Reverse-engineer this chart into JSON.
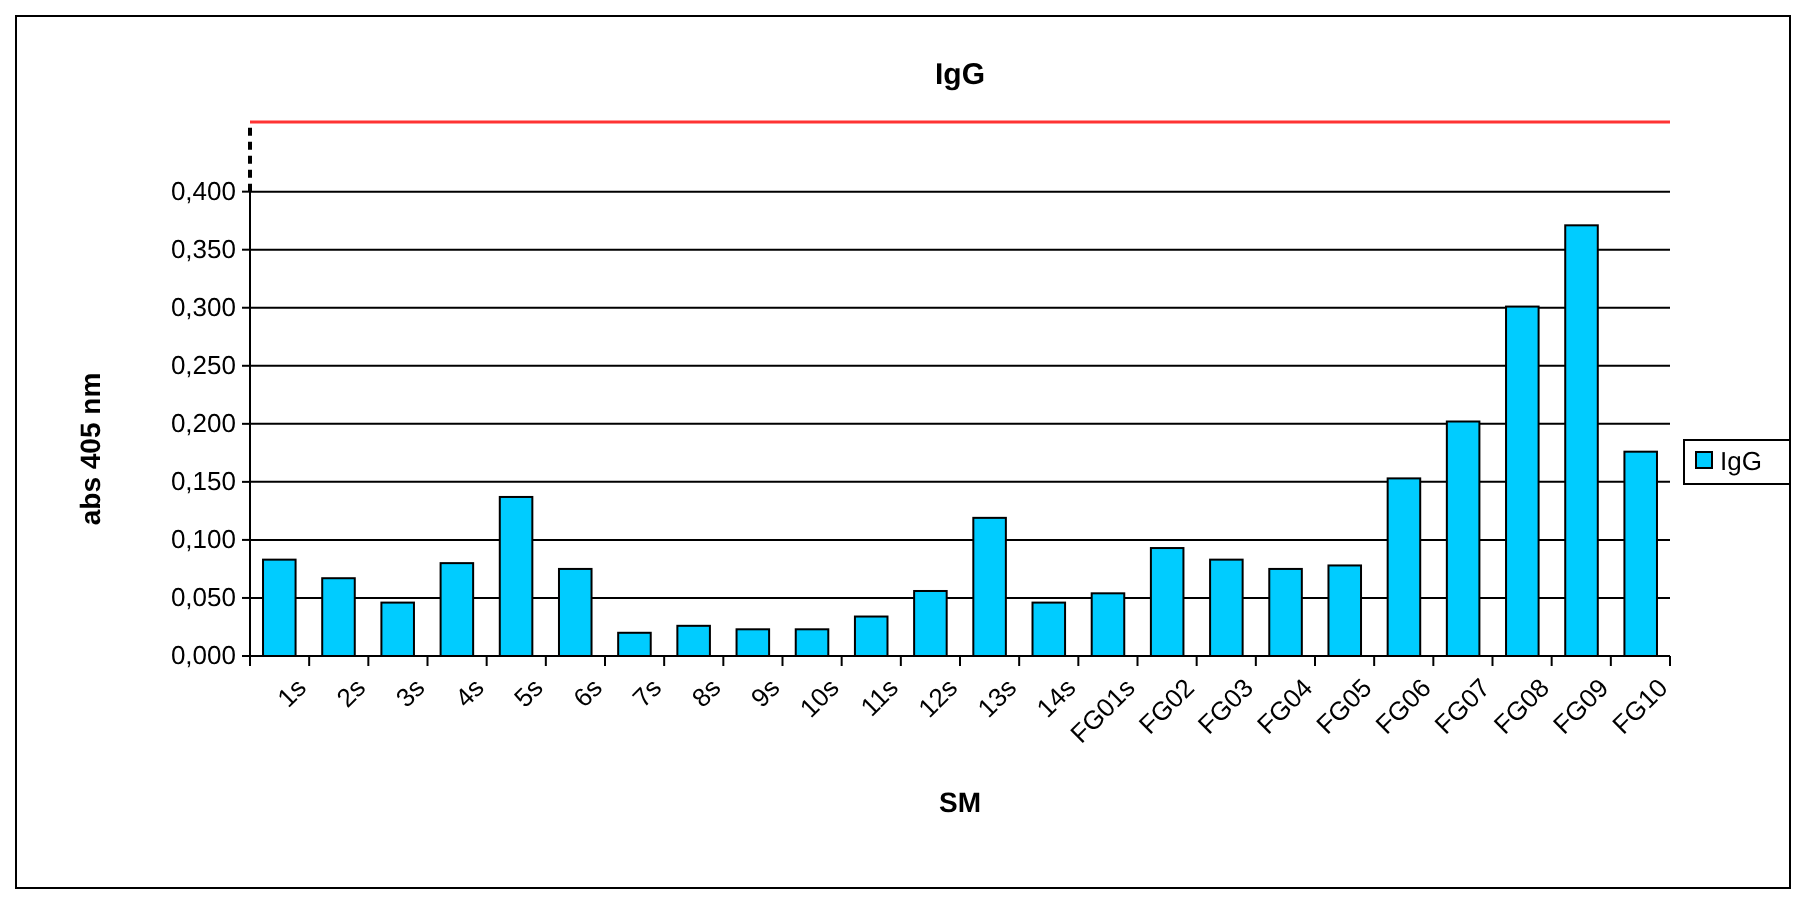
{
  "chart_data": {
    "type": "bar",
    "title": "IgG",
    "xlabel": "SM",
    "ylabel": "abs 405 nm",
    "categories": [
      "1s",
      "2s",
      "3s",
      "4s",
      "5s",
      "6s",
      "7s",
      "8s",
      "9s",
      "10s",
      "11s",
      "12s",
      "13s",
      "14s",
      "FG01s",
      "FG02",
      "FG03",
      "FG04",
      "FG05",
      "FG06",
      "FG07",
      "FG08",
      "FG09",
      "FG10"
    ],
    "series": [
      {
        "name": "IgG",
        "color": "#00ccff",
        "values": [
          0.083,
          0.067,
          0.046,
          0.08,
          0.137,
          0.075,
          0.02,
          0.026,
          0.023,
          0.023,
          0.034,
          0.056,
          0.119,
          0.046,
          0.054,
          0.093,
          0.083,
          0.075,
          0.078,
          0.153,
          0.202,
          0.301,
          0.371,
          0.176
        ]
      }
    ],
    "ylim": [
      0,
      0.46
    ],
    "yticks": [
      {
        "value": 0,
        "label": "0,000"
      },
      {
        "value": 0.05,
        "label": "0,050"
      },
      {
        "value": 0.1,
        "label": "0,100"
      },
      {
        "value": 0.15,
        "label": "0,150"
      },
      {
        "value": 0.2,
        "label": "0,200"
      },
      {
        "value": 0.25,
        "label": "0,250"
      },
      {
        "value": 0.3,
        "label": "0,300"
      },
      {
        "value": 0.35,
        "label": "0,350"
      },
      {
        "value": 0.4,
        "label": "0,400"
      }
    ],
    "ref_lines": [
      {
        "axis": "y",
        "value": 0.46,
        "color": "#ff3333"
      }
    ],
    "grid": "y",
    "legend": "right"
  }
}
